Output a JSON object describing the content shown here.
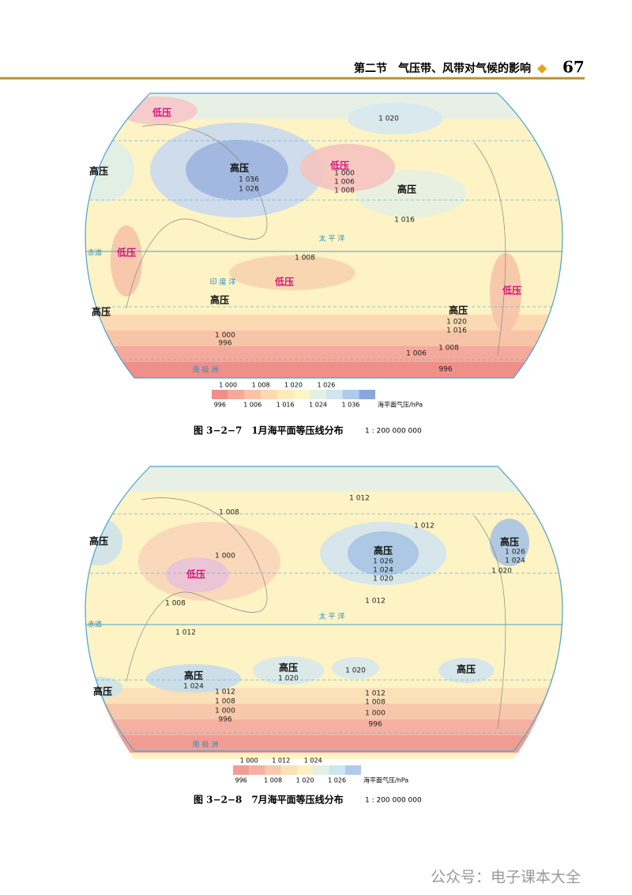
{
  "header": {
    "section": "第二节　气压带、风带对气候的影响",
    "page": "67"
  },
  "figures": [
    {
      "labels": [
        "低压",
        "高压",
        "低压",
        "高压",
        "高压",
        "低压",
        "低压",
        "高压",
        "高压",
        "高压",
        "低压",
        "1 036",
        "1 026",
        "1 000",
        "1 006",
        "1 008",
        "1 020",
        "1 016",
        "1 008",
        "1 000",
        "996",
        "1 006",
        "1 008",
        "996",
        "1 020",
        "1 016",
        "太 平 洋",
        "印 度 洋",
        "南 极 洲",
        "赤道"
      ],
      "legend": {
        "top": [
          "1 000",
          "1 008",
          "1 020",
          "1 026"
        ],
        "bottom": [
          "996",
          "1 006",
          "1 016",
          "1 024",
          "1 036"
        ],
        "unit": "海平面气压/hPa"
      },
      "caption": "图 3−2−7　1月海平面等压线分布",
      "scale": "1 : 200 000 000"
    },
    {
      "labels": [
        "高压",
        "高压",
        "低压",
        "高压",
        "高压",
        "高压",
        "高压",
        "高压",
        "1 026",
        "1 024",
        "1 020",
        "1 000",
        "1 008",
        "1 012",
        "1 012",
        "1 008",
        "1 012",
        "1 012",
        "1 026",
        "1 024",
        "1 020",
        "1 024",
        "1 020",
        "1 020",
        "1 012",
        "1 008",
        "1 000",
        "996",
        "1 012",
        "1 008",
        "1 000",
        "996",
        "太 平 洋",
        "南 极 洲",
        "赤道"
      ],
      "legend": {
        "top": [
          "1 000",
          "1 012",
          "1 024"
        ],
        "bottom": [
          "996",
          "1 008",
          "1 020",
          "1 026"
        ],
        "unit": "海平面气压/hPa"
      },
      "caption": "图 3−2−8　7月海平面等压线分布",
      "scale": "1 : 200 000 000"
    }
  ],
  "footer": "公众号：电子课本大全"
}
